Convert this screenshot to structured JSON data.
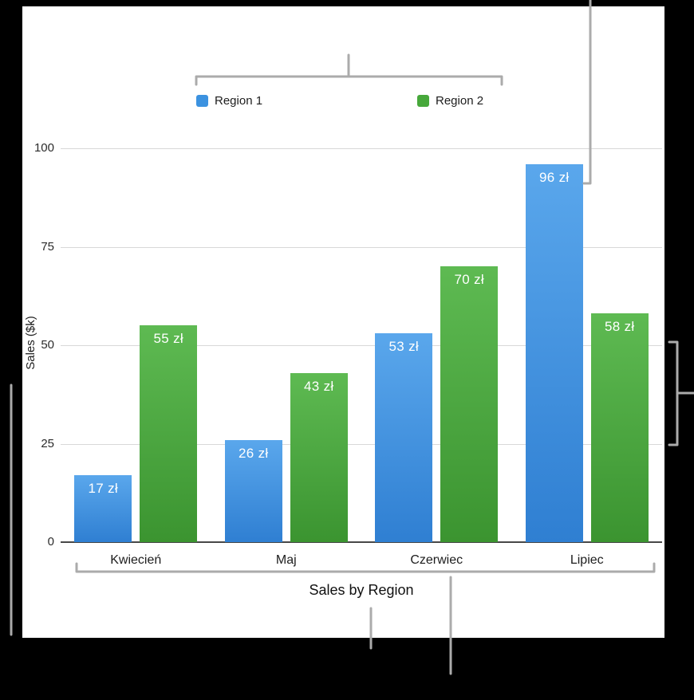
{
  "chart_data": {
    "type": "bar",
    "title": "Sales by Region",
    "value_axis_title": "Sales ($k)",
    "categories": [
      "Kwiecień",
      "Maj",
      "Czerwiec",
      "Lipiec"
    ],
    "series": [
      {
        "name": "Region 1",
        "swatch": "#3c92e0",
        "color_top": "#5aa7ec",
        "color_bottom": "#2f7fd2",
        "values": [
          17,
          26,
          53,
          96
        ],
        "data_labels": [
          "17 zł",
          "26 zł",
          "53 zł",
          "96 zł"
        ]
      },
      {
        "name": "Region 2",
        "swatch": "#47a83b",
        "color_top": "#5eba52",
        "color_bottom": "#3b9430",
        "values": [
          55,
          43,
          70,
          58
        ],
        "data_labels": [
          "55 zł",
          "43 zł",
          "70 zł",
          "58 zł"
        ]
      }
    ],
    "yticks": [
      "0",
      "25",
      "50",
      "75",
      "100"
    ],
    "ylim": [
      0,
      100
    ],
    "grid": true,
    "legend_position": "top"
  },
  "colors": {
    "page_background": "#000000",
    "chart_background": "#ffffff",
    "callout_line": "#ababab",
    "gridline": "#d8d8d8",
    "axis_line": "#474747"
  }
}
